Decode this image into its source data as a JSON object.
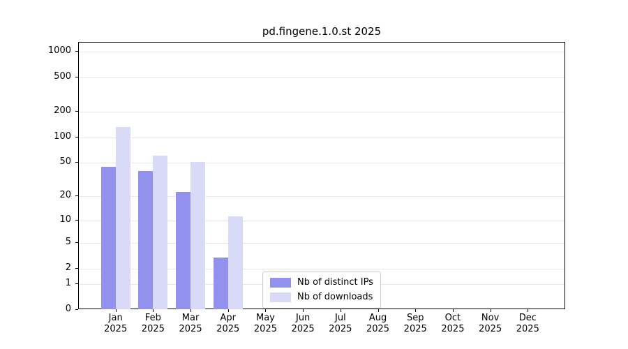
{
  "chart_data": {
    "type": "bar",
    "title": "pd.fingene.1.0.st 2025",
    "categories": [
      "Jan 2025",
      "Feb 2025",
      "Mar 2025",
      "Apr 2025",
      "May 2025",
      "Jun 2025",
      "Jul 2025",
      "Aug 2025",
      "Sep 2025",
      "Oct 2025",
      "Nov 2025",
      "Dec 2025"
    ],
    "series": [
      {
        "name": "Nb of distinct IPs",
        "color": "#9292ee",
        "values": [
          44,
          39,
          22,
          3,
          0,
          0,
          0,
          0,
          0,
          0,
          0,
          0
        ]
      },
      {
        "name": "Nb of downloads",
        "color": "#d9d9f8",
        "values": [
          130,
          60,
          50,
          11,
          0,
          0,
          0,
          0,
          0,
          0,
          0,
          0
        ]
      }
    ],
    "yticks": [
      0,
      1,
      2,
      5,
      10,
      20,
      50,
      100,
      200,
      500,
      1000
    ],
    "yscale": "log1p",
    "ylim": [
      0,
      1000
    ],
    "grid": true,
    "legend": {
      "position": "bottom-center"
    }
  }
}
